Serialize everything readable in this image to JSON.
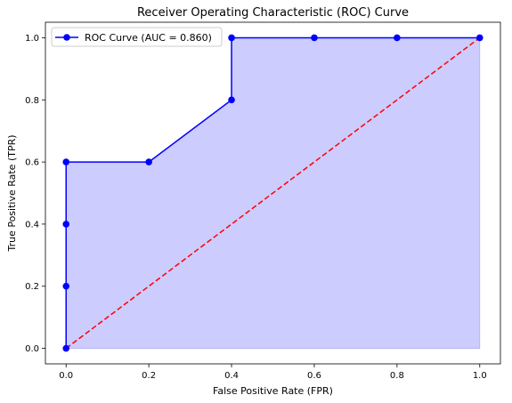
{
  "chart_data": {
    "type": "line",
    "title": "Receiver Operating Characteristic (ROC) Curve",
    "xlabel": "False Positive Rate (FPR)",
    "ylabel": "True Positive Rate (TPR)",
    "xlim": [
      -0.05,
      1.05
    ],
    "ylim": [
      -0.05,
      1.05
    ],
    "xticks": [
      0.0,
      0.2,
      0.4,
      0.6,
      0.8,
      1.0
    ],
    "yticks": [
      0.0,
      0.2,
      0.4,
      0.6,
      0.8,
      1.0
    ],
    "xtick_labels": [
      "0.0",
      "0.2",
      "0.4",
      "0.6",
      "0.8",
      "1.0"
    ],
    "ytick_labels": [
      "0.0",
      "0.2",
      "0.4",
      "0.6",
      "0.8",
      "1.0"
    ],
    "grid": false,
    "legend_position": "top-left",
    "series": [
      {
        "name": "ROC Curve (AUC = 0.860)",
        "color": "#0000ff",
        "fill_color": "#ccccff",
        "x": [
          0.0,
          0.0,
          0.0,
          0.0,
          0.2,
          0.4,
          0.4,
          0.6,
          0.8,
          1.0
        ],
        "y": [
          0.0,
          0.2,
          0.4,
          0.6,
          0.6,
          0.8,
          1.0,
          1.0,
          1.0,
          1.0
        ]
      }
    ],
    "reference_line": {
      "color": "#ff0000",
      "style": "dashed",
      "x": [
        0.0,
        1.0
      ],
      "y": [
        0.0,
        1.0
      ]
    }
  }
}
